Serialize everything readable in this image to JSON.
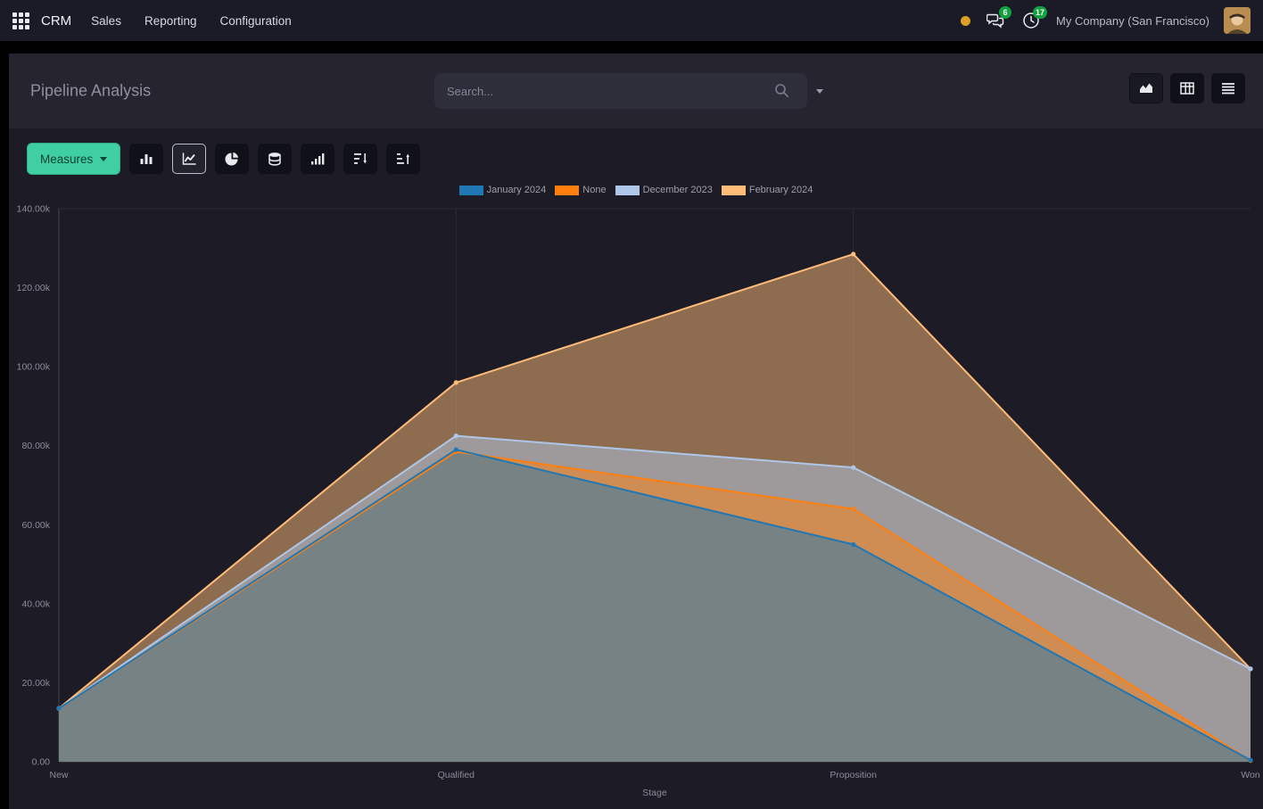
{
  "nav": {
    "app_name": "CRM",
    "menus": [
      {
        "label": "Sales"
      },
      {
        "label": "Reporting"
      },
      {
        "label": "Configuration"
      }
    ],
    "systray": {
      "messages_count": "6",
      "activities_count": "17",
      "company": "My Company (San Francisco)"
    },
    "icons": [
      "apps-grid-icon",
      "status-dot-icon",
      "messages-icon",
      "activities-clock-icon",
      "avatar"
    ]
  },
  "control_panel": {
    "title": "Pipeline Analysis",
    "search": {
      "placeholder": "Search..."
    },
    "view_switchers": [
      {
        "icon": "area-chart-icon",
        "name": "graph-view",
        "active": true
      },
      {
        "icon": "pivot-table-icon",
        "name": "pivot-view",
        "active": false
      },
      {
        "icon": "list-icon",
        "name": "list-view",
        "active": false
      }
    ]
  },
  "toolbar": {
    "measures_label": "Measures",
    "icons": [
      "bar-chart-icon",
      "line-chart-icon",
      "pie-chart-icon",
      "stacked-database-icon",
      "ascending-bars-icon",
      "sort-desc-icon",
      "sort-asc-icon"
    ],
    "active_chart_type": "line-chart"
  },
  "colors": {
    "measures_green": "#3fcfa3",
    "badge_green": "#12a13f",
    "amber_dot": "#dd9f28"
  },
  "chart_data": {
    "type": "area",
    "title": "Pipeline Analysis",
    "categories": [
      "New",
      "Qualified",
      "Proposition",
      "Won"
    ],
    "series": [
      {
        "name": "January 2024",
        "color": "#1f77b4",
        "values": [
          13500,
          79000,
          55000,
          400
        ]
      },
      {
        "name": "None",
        "color": "#ff7f0e",
        "values": [
          13500,
          78500,
          64000,
          300
        ]
      },
      {
        "name": "December 2023",
        "color": "#aec7e8",
        "values": [
          13500,
          82500,
          74500,
          23500
        ]
      },
      {
        "name": "February 2024",
        "color": "#ffbb78",
        "values": [
          13500,
          96000,
          128500,
          23500
        ]
      }
    ],
    "xlabel": "Stage",
    "ylabel": "",
    "ylim": [
      0,
      140000
    ],
    "y_ticks": [
      "0.00",
      "20.00k",
      "40.00k",
      "60.00k",
      "80.00k",
      "100.00k",
      "120.00k",
      "140.00k"
    ],
    "legend_position": "top",
    "grid": "vertical-inner-only"
  }
}
